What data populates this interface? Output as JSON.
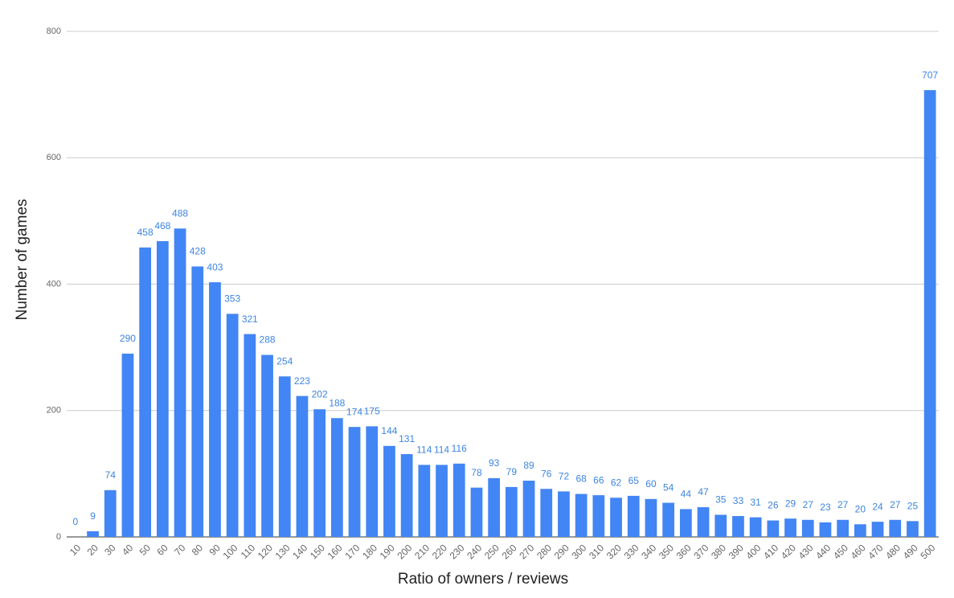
{
  "chart_data": {
    "type": "bar",
    "x_label": "Ratio of owners / reviews",
    "y_label": "Number of games",
    "categories": [
      "10",
      "20",
      "30",
      "40",
      "50",
      "60",
      "70",
      "80",
      "90",
      "100",
      "110",
      "120",
      "130",
      "140",
      "150",
      "160",
      "170",
      "180",
      "190",
      "200",
      "210",
      "220",
      "230",
      "240",
      "250",
      "260",
      "270",
      "280",
      "290",
      "300",
      "310",
      "320",
      "330",
      "340",
      "350",
      "360",
      "370",
      "380",
      "390",
      "400",
      "410",
      "420",
      "430",
      "440",
      "450",
      "460",
      "470",
      "480",
      "490",
      "500"
    ],
    "values": [
      0,
      9,
      74,
      290,
      458,
      468,
      488,
      428,
      403,
      353,
      321,
      288,
      254,
      223,
      202,
      188,
      174,
      175,
      144,
      131,
      114,
      114,
      116,
      78,
      93,
      79,
      89,
      76,
      72,
      68,
      66,
      62,
      65,
      60,
      54,
      44,
      47,
      35,
      33,
      31,
      26,
      29,
      27,
      23,
      27,
      20,
      24,
      27,
      25,
      707
    ],
    "color": "#4285f4",
    "ylim": [
      0,
      800
    ],
    "yticks": [
      0,
      200,
      400,
      600,
      800
    ],
    "grid": true
  }
}
